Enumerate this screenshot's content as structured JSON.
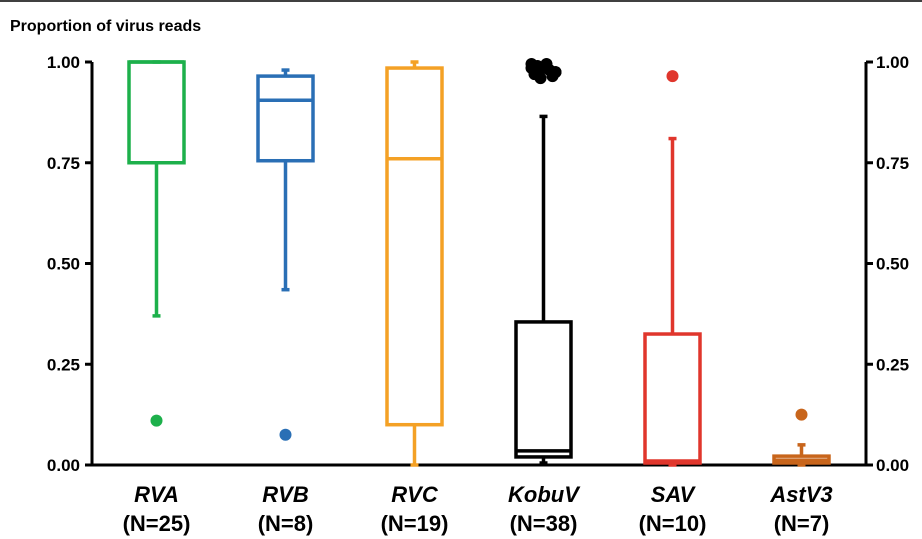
{
  "chart_data": {
    "type": "boxplot",
    "title": "Proportion of virus reads",
    "ylim": [
      0,
      1
    ],
    "yticks": [
      "0.00",
      "0.25",
      "0.50",
      "0.75",
      "1.00"
    ],
    "ytick_values": [
      0,
      0.25,
      0.5,
      0.75,
      1
    ],
    "categories": [
      {
        "name": "RVA",
        "n_label": "(N=25)",
        "color": "#1db04b",
        "whisker_low": 0.37,
        "q1": 0.75,
        "median": 1.0,
        "q3": 1.0,
        "whisker_high": 1.0,
        "outliers": [
          0.11
        ]
      },
      {
        "name": "RVB",
        "n_label": "(N=8)",
        "color": "#2a6fb5",
        "whisker_low": 0.435,
        "q1": 0.755,
        "median": 0.905,
        "q3": 0.965,
        "whisker_high": 0.98,
        "outliers": [
          0.075
        ]
      },
      {
        "name": "RVC",
        "n_label": "(N=19)",
        "color": "#f4a125",
        "whisker_low": 0.0,
        "q1": 0.1,
        "median": 0.76,
        "q3": 0.985,
        "whisker_high": 1.0,
        "outliers": []
      },
      {
        "name": "KobuV",
        "n_label": "(N=38)",
        "color": "#000000",
        "whisker_low": 0.005,
        "q1": 0.02,
        "median": 0.035,
        "q3": 0.355,
        "whisker_high": 0.865,
        "outliers": [
          0.995,
          0.99,
          0.985,
          0.98,
          0.975,
          0.97,
          0.965,
          0.96,
          0.995,
          0.985,
          0.975
        ]
      },
      {
        "name": "SAV",
        "n_label": "(N=10)",
        "color": "#e0362c",
        "whisker_low": 0.0,
        "q1": 0.005,
        "median": 0.01,
        "q3": 0.325,
        "whisker_high": 0.81,
        "outliers": [
          0.965
        ]
      },
      {
        "name": "AstV3",
        "n_label": "(N=7)",
        "color": "#c8651b",
        "whisker_low": 0.0,
        "q1": 0.005,
        "median": 0.012,
        "q3": 0.022,
        "whisker_high": 0.05,
        "outliers": [
          0.125
        ]
      }
    ]
  }
}
